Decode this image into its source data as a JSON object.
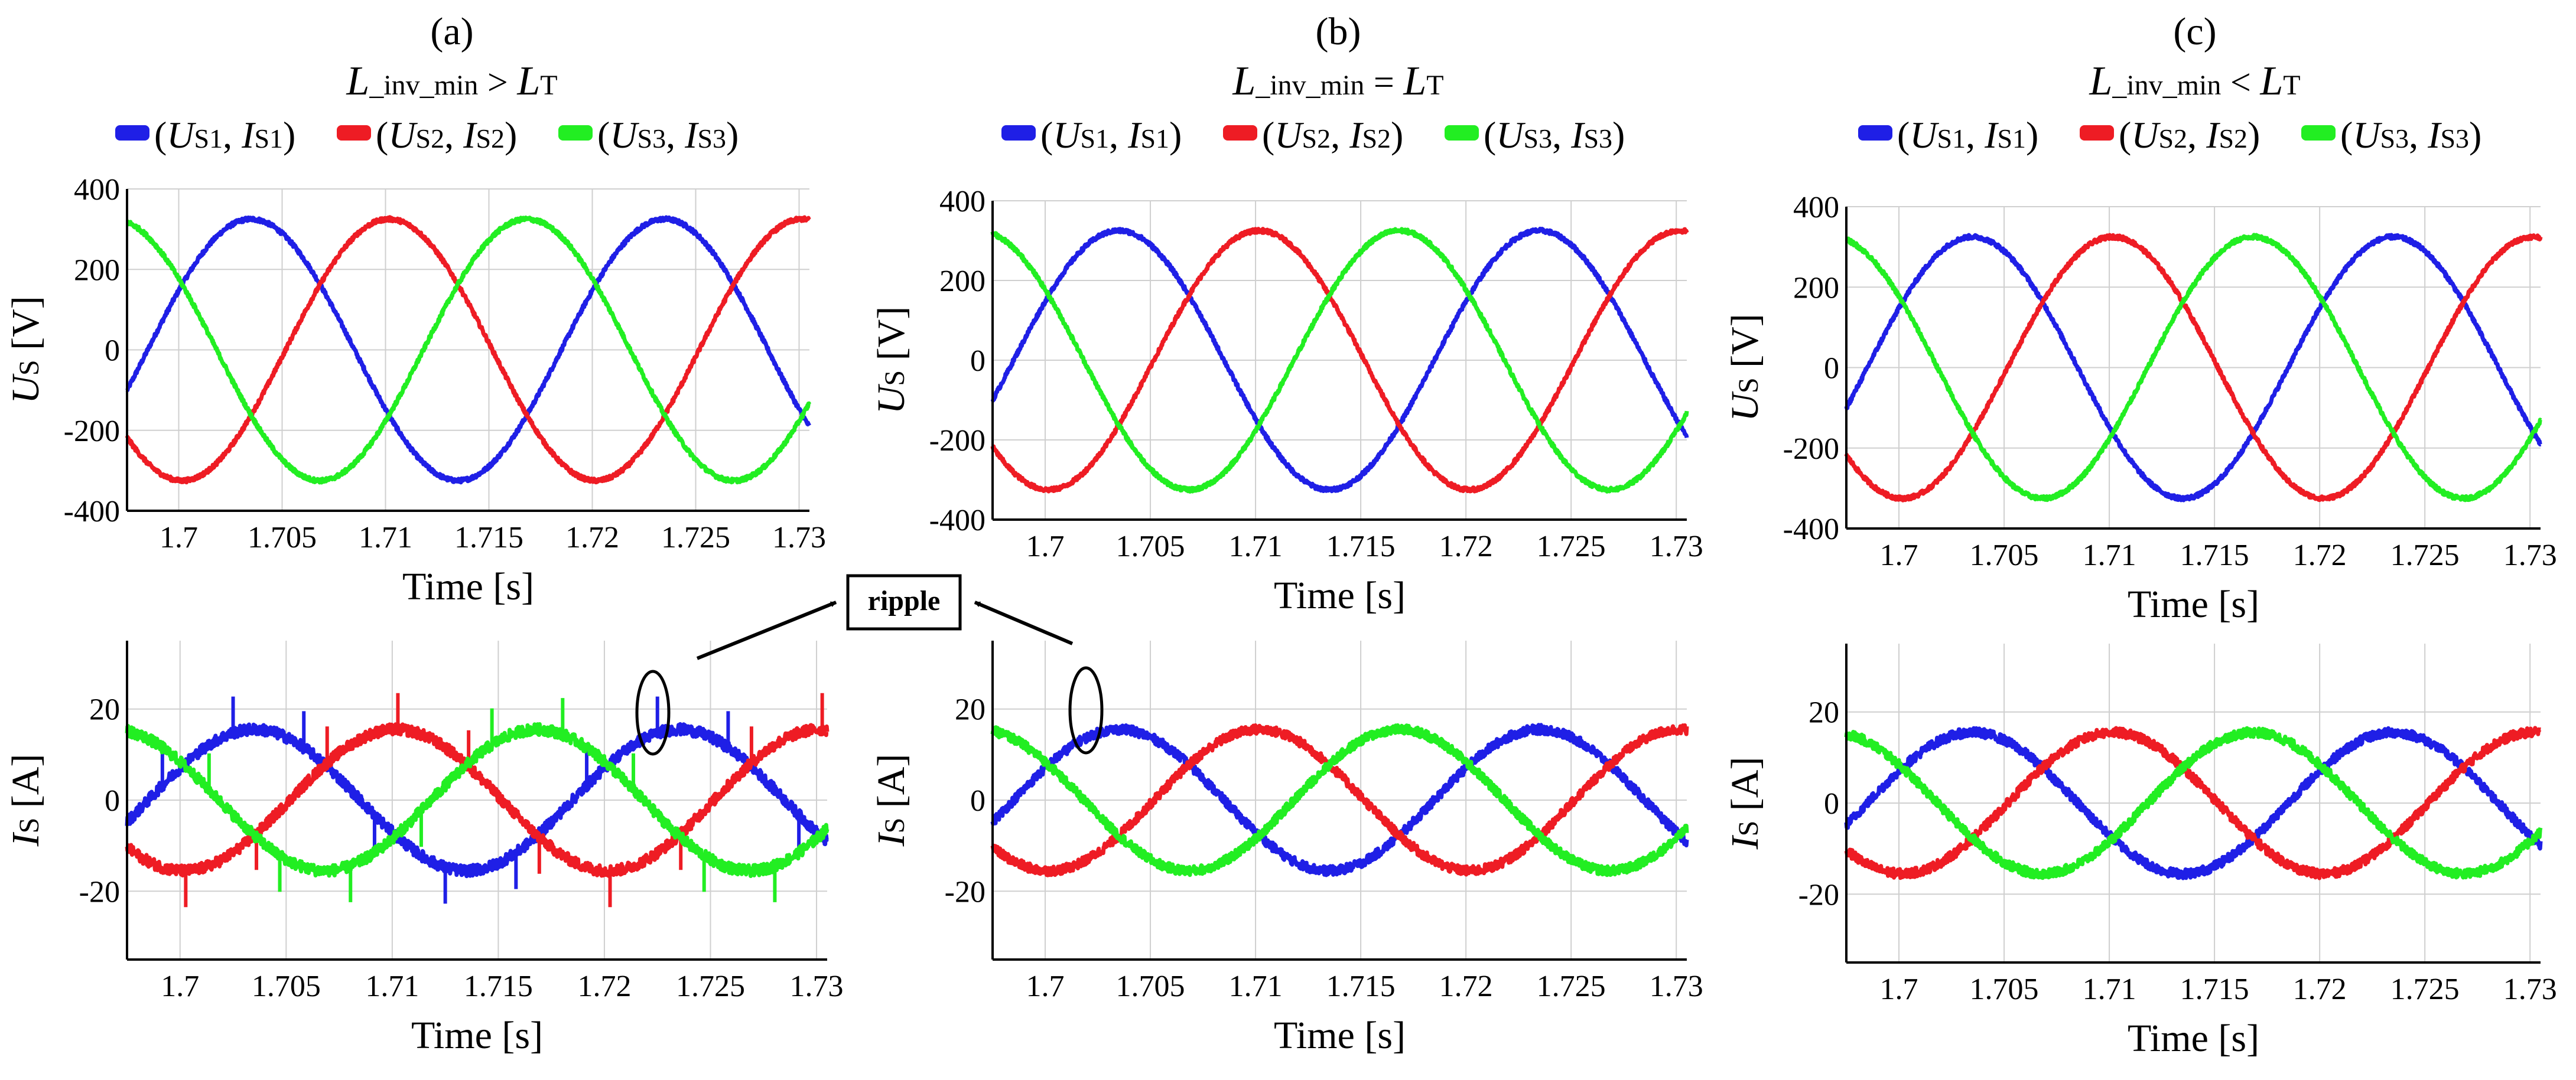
{
  "colors": {
    "phase1": "#1f1fe6",
    "phase2": "#ee1c24",
    "phase3": "#22ee22",
    "grid": "#cfcfcf",
    "axis": "#000000"
  },
  "legend": {
    "phase1": {
      "open": "(",
      "u": "U",
      "us": "S1",
      "sep": ", ",
      "i": "I",
      "is": "S1",
      "close": ")"
    },
    "phase2": {
      "open": "(",
      "u": "U",
      "us": "S2",
      "sep": ", ",
      "i": "I",
      "is": "S2",
      "close": ")"
    },
    "phase3": {
      "open": "(",
      "u": "U",
      "us": "S3",
      "sep": ", ",
      "i": "I",
      "is": "S3",
      "close": ")"
    }
  },
  "annotation": {
    "text": "ripple"
  },
  "chart_data": [
    {
      "panel": "(a)",
      "condition": {
        "main": "L",
        "sub": "_inv_min",
        "op": " > ",
        "rhs": "L",
        "rhs_sub": "T"
      },
      "voltage": {
        "type": "line",
        "ylabel_main": "U",
        "ylabel_sub": "S",
        "ylabel_unit": " [V]",
        "xlabel": "Time [s]",
        "xlim": [
          1.6975,
          1.7305
        ],
        "ylim": [
          -400,
          400
        ],
        "xticks": [
          "1.7",
          "1.705",
          "1.71",
          "1.715",
          "1.72",
          "1.725",
          "1.73"
        ],
        "yticks": [
          "400",
          "200",
          "0",
          "-200",
          "-400"
        ],
        "frequency_hz": 50,
        "amplitude": 325,
        "series": [
          {
            "name": "US1",
            "phase_deg": 0
          },
          {
            "name": "US2",
            "phase_deg": -120
          },
          {
            "name": "US3",
            "phase_deg": 120
          }
        ]
      },
      "current": {
        "type": "line",
        "ylabel_main": "I",
        "ylabel_sub": "S",
        "ylabel_unit": " [A]",
        "xlabel": "Time [s]",
        "xlim": [
          1.6975,
          1.7305
        ],
        "ylim": [
          -35,
          35
        ],
        "xticks": [
          "1.7",
          "1.705",
          "1.71",
          "1.715",
          "1.72",
          "1.725",
          "1.73"
        ],
        "yticks": [
          "20",
          "0",
          "-20"
        ],
        "frequency_hz": 50,
        "amplitude": 15.5,
        "noise": 1.2,
        "spikes": true,
        "spike_size": 8,
        "series": [
          {
            "name": "IS1",
            "phase_deg": 0
          },
          {
            "name": "IS2",
            "phase_deg": -120
          },
          {
            "name": "IS3",
            "phase_deg": 120
          }
        ]
      }
    },
    {
      "panel": "(b)",
      "condition": {
        "main": "L",
        "sub": "_inv_min",
        "op": " = ",
        "rhs": "L",
        "rhs_sub": "T"
      },
      "voltage": {
        "type": "line",
        "ylabel_main": "U",
        "ylabel_sub": "S",
        "ylabel_unit": " [V]",
        "xlabel": "Time [s]",
        "xlim": [
          1.6975,
          1.7305
        ],
        "ylim": [
          -400,
          400
        ],
        "xticks": [
          "1.7",
          "1.705",
          "1.71",
          "1.715",
          "1.72",
          "1.725",
          "1.73"
        ],
        "yticks": [
          "400",
          "200",
          "0",
          "-200",
          "-400"
        ],
        "frequency_hz": 50,
        "amplitude": 325,
        "series": [
          {
            "name": "US1",
            "phase_deg": 0
          },
          {
            "name": "US2",
            "phase_deg": -120
          },
          {
            "name": "US3",
            "phase_deg": 120
          }
        ]
      },
      "current": {
        "type": "line",
        "ylabel_main": "I",
        "ylabel_sub": "S",
        "ylabel_unit": " [A]",
        "xlabel": "Time [s]",
        "xlim": [
          1.6975,
          1.7305
        ],
        "ylim": [
          -35,
          35
        ],
        "xticks": [
          "1.7",
          "1.705",
          "1.71",
          "1.715",
          "1.72",
          "1.725",
          "1.73"
        ],
        "yticks": [
          "20",
          "0",
          "-20"
        ],
        "frequency_hz": 50,
        "amplitude": 15.5,
        "noise": 1.0,
        "spikes": false,
        "series": [
          {
            "name": "IS1",
            "phase_deg": 0
          },
          {
            "name": "IS2",
            "phase_deg": -120
          },
          {
            "name": "IS3",
            "phase_deg": 120
          }
        ]
      }
    },
    {
      "panel": "(c)",
      "condition": {
        "main": "L",
        "sub": "_inv_min",
        "op": " < ",
        "rhs": "L",
        "rhs_sub": "T"
      },
      "voltage": {
        "type": "line",
        "ylabel_main": "U",
        "ylabel_sub": "S",
        "ylabel_unit": " [V]",
        "xlabel": "Time [s]",
        "xlim": [
          1.6975,
          1.7305
        ],
        "ylim": [
          -400,
          400
        ],
        "xticks": [
          "1.7",
          "1.705",
          "1.71",
          "1.715",
          "1.72",
          "1.725",
          "1.73"
        ],
        "yticks": [
          "400",
          "200",
          "0",
          "-200",
          "-400"
        ],
        "frequency_hz": 50,
        "amplitude": 325,
        "series": [
          {
            "name": "US1",
            "phase_deg": 0
          },
          {
            "name": "US2",
            "phase_deg": -120
          },
          {
            "name": "US3",
            "phase_deg": 120
          }
        ]
      },
      "current": {
        "type": "line",
        "ylabel_main": "I",
        "ylabel_sub": "S",
        "ylabel_unit": " [A]",
        "xlabel": "Time [s]",
        "xlim": [
          1.6975,
          1.7305
        ],
        "ylim": [
          -35,
          35
        ],
        "xticks": [
          "1.7",
          "1.705",
          "1.71",
          "1.715",
          "1.72",
          "1.725",
          "1.73"
        ],
        "yticks": [
          "20",
          "0",
          "-20"
        ],
        "frequency_hz": 50,
        "amplitude": 15.5,
        "noise": 1.0,
        "spikes": false,
        "series": [
          {
            "name": "IS1",
            "phase_deg": 0
          },
          {
            "name": "IS2",
            "phase_deg": -120
          },
          {
            "name": "IS3",
            "phase_deg": 120
          }
        ]
      }
    }
  ]
}
